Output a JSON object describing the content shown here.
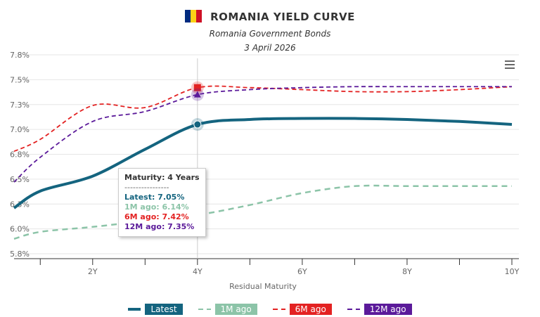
{
  "header": {
    "title": "ROMANIA YIELD CURVE",
    "subtitle": "Romania Government Bonds",
    "date": "3 April 2026",
    "flag_colors": [
      "#002B7F",
      "#FCD116",
      "#CE1126"
    ]
  },
  "chart_data": {
    "type": "line",
    "xlabel": "Residual Maturity",
    "x_ticks": [
      {
        "v": 1,
        "label": ""
      },
      {
        "v": 2,
        "label": "2Y"
      },
      {
        "v": 3,
        "label": ""
      },
      {
        "v": 4,
        "label": "4Y"
      },
      {
        "v": 5,
        "label": ""
      },
      {
        "v": 6,
        "label": "6Y"
      },
      {
        "v": 7,
        "label": ""
      },
      {
        "v": 8,
        "label": "8Y"
      },
      {
        "v": 9,
        "label": ""
      },
      {
        "v": 10,
        "label": "10Y"
      }
    ],
    "xlim": [
      0.5,
      10
    ],
    "ylim": [
      5.75,
      7.75
    ],
    "y_ticks": [
      {
        "v": 5.75,
        "label": "5.8%"
      },
      {
        "v": 6.0,
        "label": "6.0%"
      },
      {
        "v": 6.25,
        "label": "6.3%"
      },
      {
        "v": 6.5,
        "label": "6.5%"
      },
      {
        "v": 6.75,
        "label": "6.8%"
      },
      {
        "v": 7.0,
        "label": "7.0%"
      },
      {
        "v": 7.25,
        "label": "7.3%"
      },
      {
        "v": 7.5,
        "label": "7.5%"
      },
      {
        "v": 7.75,
        "label": "7.8%"
      }
    ],
    "grid": true,
    "x": [
      0.5,
      1,
      2,
      3,
      4,
      5,
      6,
      7,
      8,
      9,
      10
    ],
    "series": [
      {
        "name": "Latest",
        "color": "#14647F",
        "dash": "",
        "width": 4,
        "values": [
          6.21,
          6.38,
          6.53,
          6.8,
          7.05,
          7.1,
          7.11,
          7.11,
          7.1,
          7.08,
          7.05
        ]
      },
      {
        "name": "1M ago",
        "color": "#8CC4A8",
        "dash": "8,6",
        "width": 2.5,
        "values": [
          5.9,
          5.97,
          6.02,
          6.08,
          6.14,
          6.24,
          6.36,
          6.43,
          6.43,
          6.43,
          6.43
        ]
      },
      {
        "name": "6M ago",
        "color": "#E32222",
        "dash": "6,4",
        "width": 1.8,
        "values": [
          6.78,
          6.9,
          7.24,
          7.22,
          7.42,
          7.42,
          7.4,
          7.38,
          7.38,
          7.4,
          7.43
        ]
      },
      {
        "name": "12M ago",
        "color": "#5B1A9A",
        "dash": "6,4",
        "width": 1.8,
        "values": [
          6.47,
          6.72,
          7.08,
          7.18,
          7.35,
          7.4,
          7.42,
          7.43,
          7.43,
          7.43,
          7.43
        ]
      }
    ],
    "legend": "bottom",
    "tooltip": {
      "title": "Maturity: 4 Years",
      "separator": "----------------",
      "lines": [
        "Latest: 7.05%",
        "1M ago: 6.14%",
        "6M ago: 7.42%",
        "12M ago: 7.35%"
      ]
    }
  }
}
